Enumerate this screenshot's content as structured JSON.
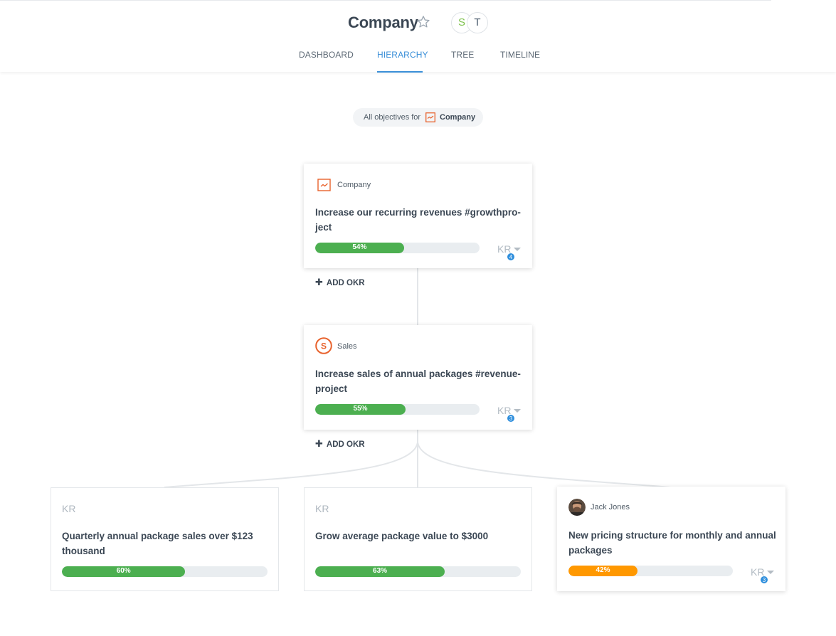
{
  "header": {
    "title": "Company",
    "avatars": [
      {
        "initial": "S",
        "color": "#7cc14a"
      },
      {
        "initial": "T",
        "color": "#47586a"
      }
    ],
    "tabs": [
      {
        "label": "DASHBOARD",
        "active": false
      },
      {
        "label": "HIERARCHY",
        "active": true
      },
      {
        "label": "TREE",
        "active": false
      },
      {
        "label": "TIMELINE",
        "active": false
      }
    ]
  },
  "filter": {
    "prefix": "All objectives for",
    "target": "Company",
    "icon": "company-chart-icon"
  },
  "colors": {
    "accent": "#3a8fd8",
    "progress_green": "#4caf50",
    "progress_orange": "#ff9800",
    "company_icon": "#e8622c",
    "badge_blue": "#2f8fdd"
  },
  "add_okr_label": "ADD OKR",
  "cards": {
    "company": {
      "owner": "Company",
      "owner_icon": "company-chart-icon",
      "title": "Increase our recurring revenues #growthproject",
      "title_line1": "Increase our recurring revenues #growthpro-",
      "title_line2": "ject",
      "progress": 54,
      "progress_label": "54%",
      "kr_label": "KR",
      "kr_count": "4"
    },
    "sales": {
      "owner": "Sales",
      "owner_icon": "sales-s-icon",
      "title_line1": "Increase sales of annual packages #revenue-",
      "title_line2": "project",
      "progress": 55,
      "progress_label": "55%",
      "kr_label": "KR",
      "kr_count": "3"
    },
    "kr1": {
      "tag": "KR",
      "title_line1": "Quarterly annual package sales over $123",
      "title_line2": "thousand",
      "progress": 60,
      "progress_label": "60%"
    },
    "kr2": {
      "tag": "KR",
      "title_line1": "Grow average package value to $3000",
      "progress": 63,
      "progress_label": "63%"
    },
    "jack": {
      "owner": "Jack Jones",
      "owner_icon": "user-photo-avatar",
      "title_line1": "New pricing structure for monthly and annual",
      "title_line2": "packages",
      "progress": 42,
      "progress_label": "42%",
      "kr_label": "KR",
      "kr_count": "3"
    }
  }
}
